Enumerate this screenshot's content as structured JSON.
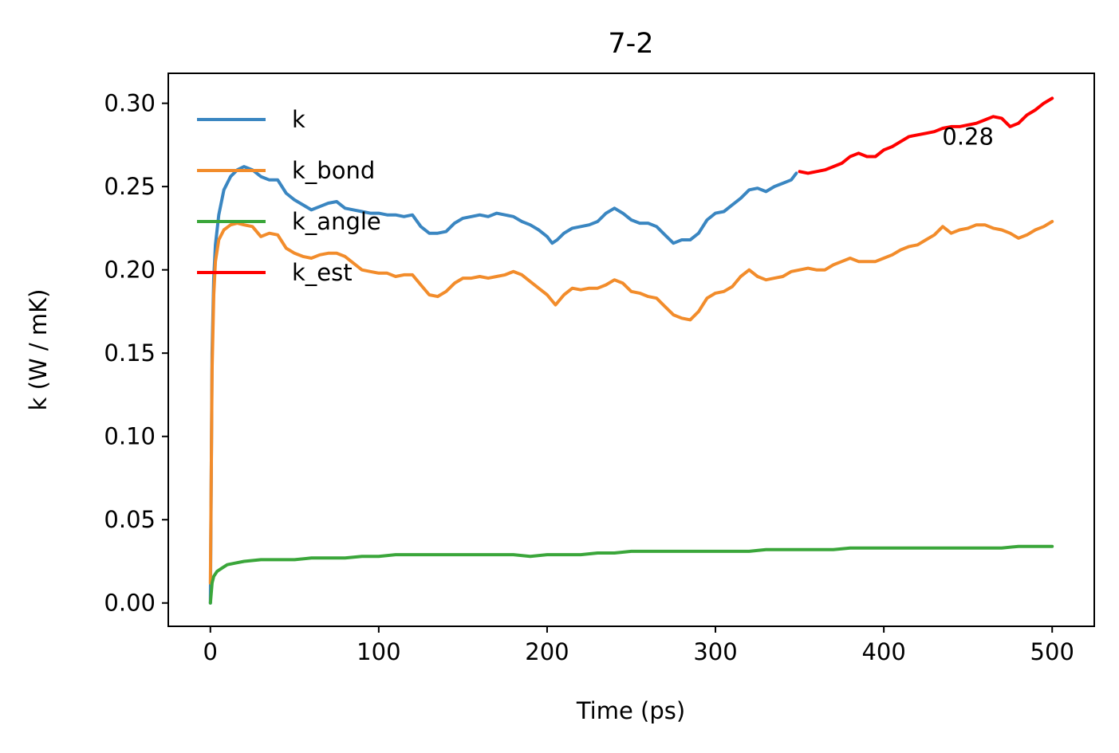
{
  "chart_data": {
    "type": "line",
    "title": "7-2",
    "xlabel": "Time (ps)",
    "ylabel": "k (W / mK)",
    "xlim": [
      -25,
      525
    ],
    "ylim": [
      -0.014,
      0.318
    ],
    "xticks": [
      0,
      100,
      200,
      300,
      400,
      500
    ],
    "xtick_labels": [
      "0",
      "100",
      "200",
      "300",
      "400",
      "500"
    ],
    "yticks": [
      0.0,
      0.05,
      0.1,
      0.15,
      0.2,
      0.25,
      0.3
    ],
    "ytick_labels": [
      "0.00",
      "0.05",
      "0.10",
      "0.15",
      "0.20",
      "0.25",
      "0.30"
    ],
    "grid": false,
    "legend_position": "upper-left",
    "annotation": {
      "text": "0.28",
      "x": 450,
      "y": 0.28
    },
    "series": [
      {
        "name": "k",
        "color": "#3a86c1",
        "x": [
          0,
          1,
          2,
          3,
          5,
          8,
          12,
          16,
          20,
          25,
          30,
          35,
          40,
          45,
          50,
          55,
          60,
          65,
          70,
          75,
          80,
          85,
          90,
          95,
          100,
          105,
          110,
          115,
          120,
          125,
          130,
          135,
          140,
          145,
          150,
          155,
          160,
          165,
          170,
          175,
          180,
          185,
          190,
          195,
          200,
          203,
          206,
          210,
          215,
          220,
          225,
          230,
          235,
          240,
          245,
          250,
          255,
          260,
          265,
          270,
          275,
          280,
          285,
          290,
          295,
          300,
          305,
          310,
          315,
          320,
          325,
          330,
          335,
          340,
          345,
          348
        ],
        "y": [
          0.0,
          0.15,
          0.195,
          0.215,
          0.233,
          0.248,
          0.256,
          0.26,
          0.262,
          0.26,
          0.256,
          0.254,
          0.254,
          0.246,
          0.242,
          0.239,
          0.236,
          0.238,
          0.24,
          0.241,
          0.237,
          0.236,
          0.235,
          0.234,
          0.234,
          0.233,
          0.233,
          0.232,
          0.233,
          0.226,
          0.222,
          0.222,
          0.223,
          0.228,
          0.231,
          0.232,
          0.233,
          0.232,
          0.234,
          0.233,
          0.232,
          0.229,
          0.227,
          0.224,
          0.22,
          0.216,
          0.218,
          0.222,
          0.225,
          0.226,
          0.227,
          0.229,
          0.234,
          0.237,
          0.234,
          0.23,
          0.228,
          0.228,
          0.226,
          0.221,
          0.216,
          0.218,
          0.218,
          0.222,
          0.23,
          0.234,
          0.235,
          0.239,
          0.243,
          0.248,
          0.249,
          0.247,
          0.25,
          0.252,
          0.254,
          0.258
        ]
      },
      {
        "name": "k_bond",
        "color": "#f28c2b",
        "x": [
          0,
          1,
          2,
          3,
          5,
          8,
          12,
          16,
          20,
          25,
          30,
          35,
          40,
          45,
          50,
          55,
          60,
          65,
          70,
          75,
          80,
          85,
          90,
          95,
          100,
          105,
          110,
          115,
          120,
          125,
          130,
          135,
          140,
          145,
          150,
          155,
          160,
          165,
          170,
          175,
          180,
          185,
          190,
          195,
          200,
          205,
          210,
          215,
          220,
          225,
          230,
          235,
          240,
          245,
          250,
          255,
          260,
          265,
          270,
          275,
          280,
          285,
          290,
          295,
          300,
          305,
          310,
          315,
          320,
          325,
          330,
          335,
          340,
          345,
          350,
          355,
          360,
          365,
          370,
          375,
          380,
          385,
          390,
          395,
          400,
          405,
          410,
          415,
          420,
          425,
          430,
          435,
          440,
          445,
          450,
          455,
          460,
          465,
          470,
          475,
          480,
          485,
          490,
          495,
          500
        ],
        "y": [
          0.012,
          0.14,
          0.185,
          0.205,
          0.218,
          0.224,
          0.227,
          0.228,
          0.227,
          0.226,
          0.22,
          0.222,
          0.221,
          0.213,
          0.21,
          0.208,
          0.207,
          0.209,
          0.21,
          0.21,
          0.208,
          0.204,
          0.2,
          0.199,
          0.198,
          0.198,
          0.196,
          0.197,
          0.197,
          0.191,
          0.185,
          0.184,
          0.187,
          0.192,
          0.195,
          0.195,
          0.196,
          0.195,
          0.196,
          0.197,
          0.199,
          0.197,
          0.193,
          0.189,
          0.185,
          0.179,
          0.185,
          0.189,
          0.188,
          0.189,
          0.189,
          0.191,
          0.194,
          0.192,
          0.187,
          0.186,
          0.184,
          0.183,
          0.178,
          0.173,
          0.171,
          0.17,
          0.175,
          0.183,
          0.186,
          0.187,
          0.19,
          0.196,
          0.2,
          0.196,
          0.194,
          0.195,
          0.196,
          0.199,
          0.2,
          0.201,
          0.2,
          0.2,
          0.203,
          0.205,
          0.207,
          0.205,
          0.205,
          0.205,
          0.207,
          0.209,
          0.212,
          0.214,
          0.215,
          0.218,
          0.221,
          0.226,
          0.222,
          0.224,
          0.225,
          0.227,
          0.227,
          0.225,
          0.224,
          0.222,
          0.219,
          0.221,
          0.224,
          0.226,
          0.229
        ]
      },
      {
        "name": "k_angle",
        "color": "#3aa63a",
        "x": [
          0,
          1,
          2,
          4,
          7,
          10,
          15,
          20,
          30,
          40,
          50,
          60,
          70,
          80,
          90,
          100,
          110,
          120,
          130,
          140,
          150,
          160,
          170,
          180,
          190,
          200,
          210,
          220,
          230,
          240,
          250,
          260,
          270,
          280,
          290,
          300,
          310,
          320,
          330,
          340,
          350,
          360,
          370,
          380,
          390,
          400,
          410,
          420,
          430,
          440,
          450,
          460,
          470,
          480,
          490,
          500
        ],
        "y": [
          0.0,
          0.012,
          0.016,
          0.019,
          0.021,
          0.023,
          0.024,
          0.025,
          0.026,
          0.026,
          0.026,
          0.027,
          0.027,
          0.027,
          0.028,
          0.028,
          0.029,
          0.029,
          0.029,
          0.029,
          0.029,
          0.029,
          0.029,
          0.029,
          0.028,
          0.029,
          0.029,
          0.029,
          0.03,
          0.03,
          0.031,
          0.031,
          0.031,
          0.031,
          0.031,
          0.031,
          0.031,
          0.031,
          0.032,
          0.032,
          0.032,
          0.032,
          0.032,
          0.033,
          0.033,
          0.033,
          0.033,
          0.033,
          0.033,
          0.033,
          0.033,
          0.033,
          0.033,
          0.034,
          0.034,
          0.034
        ]
      },
      {
        "name": "k_est",
        "color": "#ff0000",
        "x": [
          350,
          355,
          360,
          365,
          370,
          375,
          380,
          385,
          390,
          395,
          400,
          405,
          410,
          415,
          420,
          425,
          430,
          435,
          440,
          445,
          450,
          455,
          460,
          465,
          470,
          475,
          480,
          485,
          490,
          495,
          500
        ],
        "y": [
          0.259,
          0.258,
          0.259,
          0.26,
          0.262,
          0.264,
          0.268,
          0.27,
          0.268,
          0.268,
          0.272,
          0.274,
          0.277,
          0.28,
          0.281,
          0.282,
          0.283,
          0.285,
          0.286,
          0.286,
          0.287,
          0.288,
          0.29,
          0.292,
          0.291,
          0.286,
          0.288,
          0.293,
          0.296,
          0.3,
          0.303
        ]
      }
    ]
  }
}
